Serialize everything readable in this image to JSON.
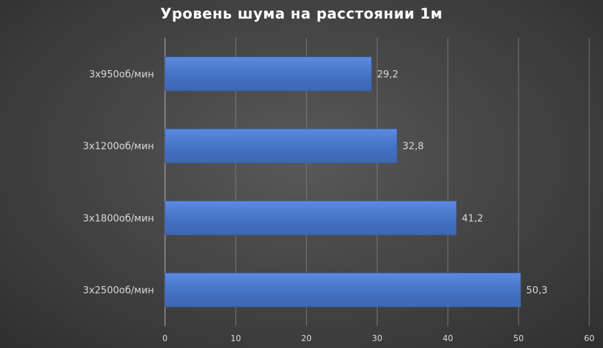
{
  "chart_data": {
    "type": "bar",
    "orientation": "horizontal",
    "title": "Уровень шума на расстоянии 1м",
    "categories": [
      "3x950об/мин",
      "3x1200об/мин",
      "3x1800об/мин",
      "3x2500об/мин"
    ],
    "values": [
      29.2,
      32.8,
      41.2,
      50.3
    ],
    "data_labels": [
      "29,2",
      "32,8",
      "41,2",
      "50,3"
    ],
    "xticks": [
      "0",
      "10",
      "20",
      "30",
      "40",
      "50",
      "60"
    ],
    "xlim": [
      0,
      60
    ],
    "grid": true,
    "legend": "none",
    "colors": {
      "bar": "#4472c4",
      "bar_light": "#5b8ae0",
      "background": "#4a4a4a",
      "text": "#d9d9d9",
      "title": "#ffffff"
    }
  }
}
